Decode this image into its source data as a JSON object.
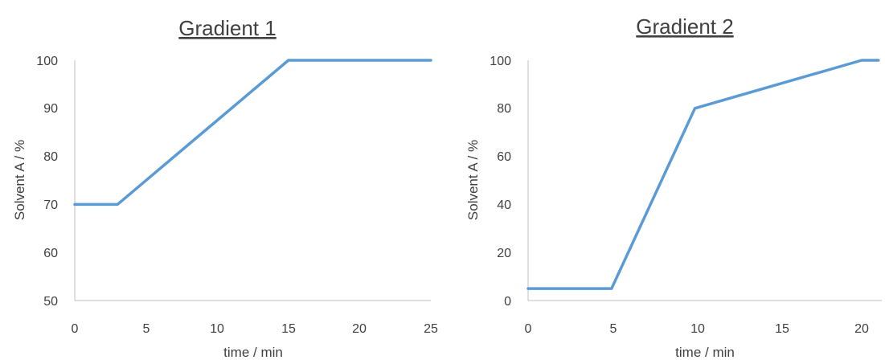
{
  "colors": {
    "series": "#5b9bd5",
    "text": "#404040",
    "axis": "#bfbfbf"
  },
  "chart_data": [
    {
      "type": "line",
      "title": "Gradient 1",
      "xlabel": "time / min",
      "ylabel": "Solvent A / %",
      "xlim": [
        0,
        25
      ],
      "ylim": [
        50,
        100
      ],
      "xticks": [
        "0",
        "5",
        "10",
        "15",
        "20",
        "25"
      ],
      "yticks": [
        "50",
        "60",
        "70",
        "80",
        "90",
        "100"
      ],
      "grid": false,
      "series": [
        {
          "x": [
            0,
            3,
            15,
            25
          ],
          "y": [
            70,
            70,
            100,
            100
          ]
        }
      ]
    },
    {
      "type": "line",
      "title": "Gradient 2",
      "xlabel": "time / min",
      "ylabel": "Solvent A / %",
      "xlim": [
        0,
        20
      ],
      "ylim": [
        0,
        100
      ],
      "xticks": [
        "0",
        "5",
        "10",
        "15",
        "20"
      ],
      "yticks": [
        "0",
        "20",
        "40",
        "60",
        "80",
        "100"
      ],
      "grid": false,
      "series": [
        {
          "x": [
            0,
            5,
            10,
            20,
            21
          ],
          "y": [
            5,
            5,
            80,
            100,
            100
          ]
        }
      ]
    }
  ]
}
